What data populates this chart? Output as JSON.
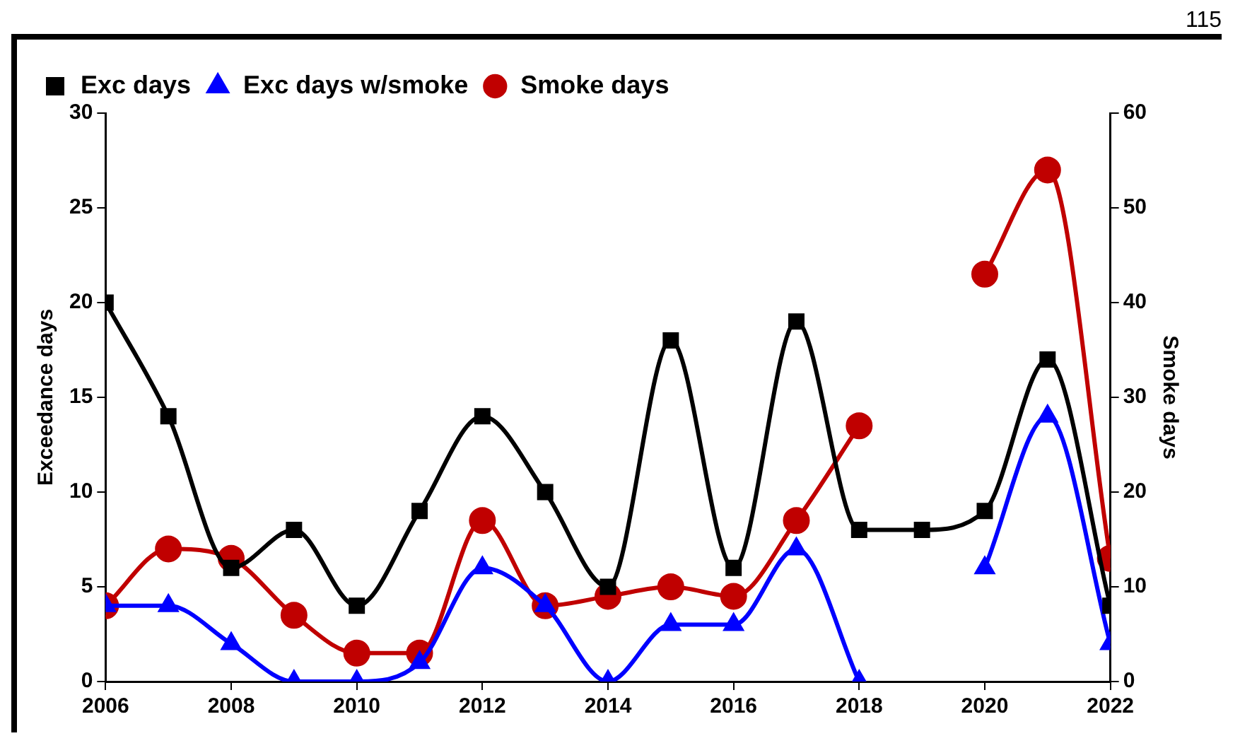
{
  "chart_data": {
    "type": "line",
    "x": [
      2006,
      2007,
      2008,
      2009,
      2010,
      2011,
      2012,
      2013,
      2014,
      2015,
      2016,
      2017,
      2018,
      2019,
      2020,
      2021,
      2022
    ],
    "series": [
      {
        "name": "Exc days",
        "color": "#000000",
        "marker": "square",
        "values": [
          20,
          14,
          6,
          8,
          4,
          9,
          14,
          10,
          5,
          18,
          6,
          19,
          8,
          8,
          9,
          17,
          4
        ]
      },
      {
        "name": "Exc days w/smoke",
        "color": "#0000ff",
        "marker": "triangle",
        "values": [
          4,
          4,
          2,
          0,
          0,
          1,
          6,
          4,
          0,
          3,
          3,
          7,
          0,
          null,
          6,
          14,
          2
        ]
      },
      {
        "name": "Smoke days",
        "color": "#c00000",
        "marker": "circle",
        "axis": "y2",
        "values": [
          8,
          14,
          13,
          7,
          3,
          3,
          17,
          8,
          9,
          10,
          9,
          17,
          27,
          null,
          43,
          54,
          13
        ]
      }
    ],
    "ylabel": "Exceedance days",
    "y2label": "Smoke days",
    "xlim": [
      2006,
      2022
    ],
    "xticks": [
      2006,
      2008,
      2010,
      2012,
      2014,
      2016,
      2018,
      2020,
      2022
    ],
    "ylim": [
      0,
      30
    ],
    "yticks": [
      0,
      5,
      10,
      15,
      20,
      25,
      30
    ],
    "y2lim": [
      0,
      60
    ],
    "y2ticks": [
      0,
      10,
      20,
      30,
      40,
      50,
      60
    ],
    "legend": "top left",
    "grid": false,
    "annotations": [
      "115"
    ]
  }
}
